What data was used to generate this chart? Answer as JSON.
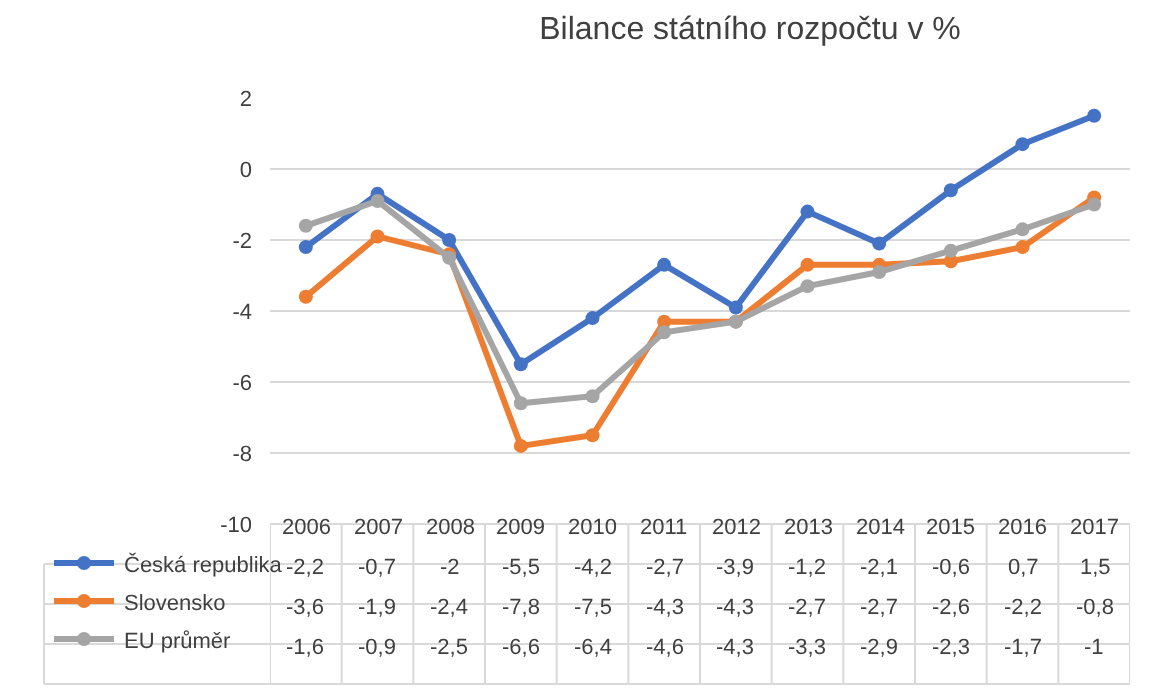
{
  "chart_data": {
    "type": "line",
    "title": "Bilance státního rozpočtu v %",
    "categories": [
      "2006",
      "2007",
      "2008",
      "2009",
      "2010",
      "2011",
      "2012",
      "2013",
      "2014",
      "2015",
      "2016",
      "2017"
    ],
    "series": [
      {
        "name": "Česká republika",
        "color": "#4472c4",
        "values": [
          -2.2,
          -0.7,
          -2,
          -5.5,
          -4.2,
          -2.7,
          -3.9,
          -1.2,
          -2.1,
          -0.6,
          0.7,
          1.5
        ],
        "value_labels": [
          "-2,2",
          "-0,7",
          "-2",
          "-5,5",
          "-4,2",
          "-2,7",
          "-3,9",
          "-1,2",
          "-2,1",
          "-0,6",
          "0,7",
          "1,5"
        ]
      },
      {
        "name": "Slovensko",
        "color": "#ed7d31",
        "values": [
          -3.6,
          -1.9,
          -2.4,
          -7.8,
          -7.5,
          -4.3,
          -4.3,
          -2.7,
          -2.7,
          -2.6,
          -2.2,
          -0.8
        ],
        "value_labels": [
          "-3,6",
          "-1,9",
          "-2,4",
          "-7,8",
          "-7,5",
          "-4,3",
          "-4,3",
          "-2,7",
          "-2,7",
          "-2,6",
          "-2,2",
          "-0,8"
        ]
      },
      {
        "name": "EU průměr",
        "color": "#a5a5a5",
        "values": [
          -1.6,
          -0.9,
          -2.5,
          -6.6,
          -6.4,
          -4.6,
          -4.3,
          -3.3,
          -2.9,
          -2.3,
          -1.7,
          -1
        ],
        "value_labels": [
          "-1,6",
          "-0,9",
          "-2,5",
          "-6,6",
          "-6,4",
          "-4,6",
          "-4,3",
          "-3,3",
          "-2,9",
          "-2,3",
          "-1,7",
          "-1"
        ]
      }
    ],
    "ylim": [
      -10,
      2
    ],
    "yticks": [
      -10,
      -8,
      -6,
      -4,
      -2,
      0,
      2
    ],
    "grid": "y",
    "marker": "circle",
    "line_style": "solid",
    "legend": "bottom left"
  }
}
